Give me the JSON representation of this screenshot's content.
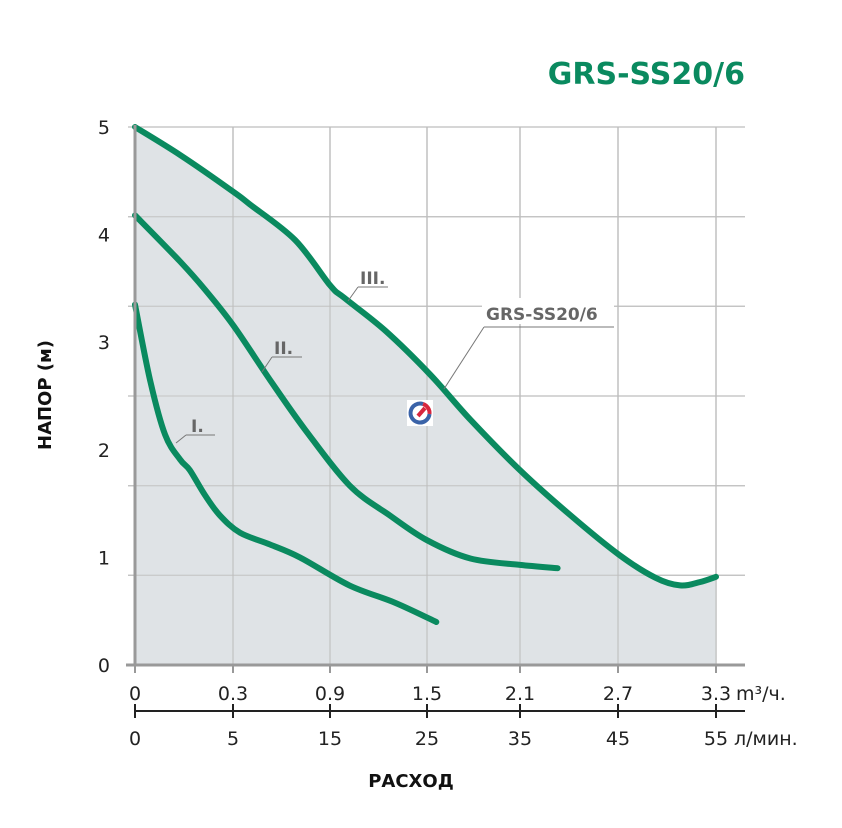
{
  "chart_data": {
    "type": "line",
    "title": "GRS-SS20/6",
    "xlabel": "РАСХОД",
    "ylabel": "НАПОР (м)",
    "x_ticks_m3h": [
      "0",
      "0.3",
      "0.9",
      "1.5",
      "2.1",
      "2.7",
      "3.3"
    ],
    "x_ticks_m3h_values": [
      0,
      0.3,
      0.9,
      1.5,
      2.1,
      2.7,
      3.3
    ],
    "x_unit_m3h": "m³/ч.",
    "x_ticks_lmin": [
      "0",
      "5",
      "15",
      "25",
      "35",
      "45",
      "55"
    ],
    "x_unit_lmin": "л/мин.",
    "y_ticks": [
      "0",
      "1",
      "2",
      "3",
      "4",
      "5"
    ],
    "ylim": [
      0,
      5
    ],
    "grid": true,
    "series_label": "GRS-SS20/6",
    "colors": {
      "curve": "#0a8a5f",
      "fill": "#dfe3e6",
      "title": "#0a8a5f"
    },
    "series": [
      {
        "name": "I.",
        "x": [
          0,
          0.046,
          0.092,
          0.138,
          0.168,
          0.214,
          0.26,
          0.343,
          0.529,
          0.714,
          1.02,
          1.3,
          1.56
        ],
        "y": [
          3.35,
          2.65,
          2.14,
          1.91,
          1.81,
          1.58,
          1.39,
          1.23,
          1.12,
          1.0,
          0.74,
          0.58,
          0.4
        ]
      },
      {
        "name": "II.",
        "x": [
          0,
          0.138,
          0.214,
          0.3,
          0.529,
          0.745,
          1.02,
          1.27,
          1.5,
          1.78,
          2.1,
          2.33
        ],
        "y": [
          4.18,
          3.75,
          3.49,
          3.16,
          2.65,
          2.19,
          1.67,
          1.39,
          1.16,
          0.99,
          0.93,
          0.9
        ]
      },
      {
        "name": "III.",
        "x": [
          0,
          0.138,
          0.3,
          0.405,
          0.684,
          0.9,
          0.99,
          1.24,
          1.52,
          1.78,
          2.1,
          2.41,
          2.71,
          2.93,
          3.08,
          3.2,
          3.3
        ],
        "y": [
          5.0,
          4.74,
          4.4,
          4.28,
          3.95,
          3.53,
          3.41,
          3.11,
          2.7,
          2.28,
          1.81,
          1.39,
          1.02,
          0.81,
          0.74,
          0.77,
          0.82
        ]
      }
    ]
  }
}
